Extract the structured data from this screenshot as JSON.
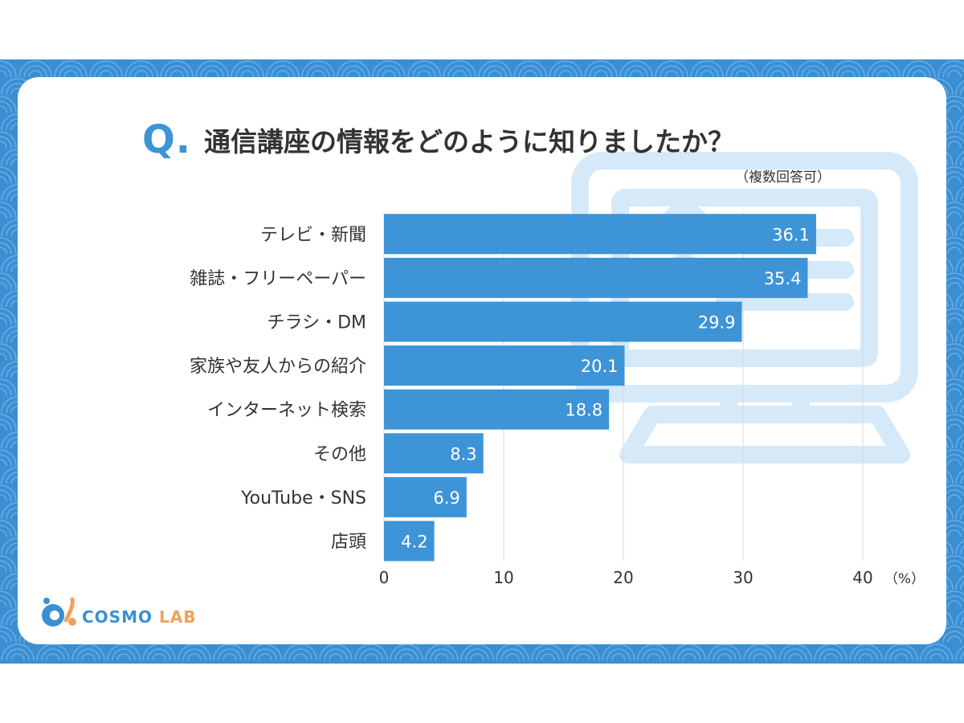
{
  "title": {
    "q_mark": "Q.",
    "text": "通信講座の情報をどのように知りましたか？",
    "note": "（複数回答可）"
  },
  "logo": {
    "part1": "COSMO",
    "part2": "LAB"
  },
  "colors": {
    "frame": "#3a8fd3",
    "bar": "#3d94d6",
    "watermark": "#d6e9f8",
    "logo_orange": "#f0a05b"
  },
  "chart_data": {
    "type": "bar",
    "orientation": "horizontal",
    "categories": [
      "テレビ・新聞",
      "雑誌・フリーペーパー",
      "チラシ・DM",
      "家族や友人からの紹介",
      "インターネット検索",
      "その他",
      "YouTube・SNS",
      "店頭"
    ],
    "values": [
      36.1,
      35.4,
      29.9,
      20.1,
      18.8,
      8.3,
      6.9,
      4.2
    ],
    "value_labels": [
      "36.1",
      "35.4",
      "29.9",
      "20.1",
      "18.8",
      "8.3",
      "6.9",
      "4.2"
    ],
    "xlim": [
      0,
      40
    ],
    "xticks": [
      0,
      10,
      20,
      30,
      40
    ],
    "unit": "（%）",
    "grid": true
  }
}
